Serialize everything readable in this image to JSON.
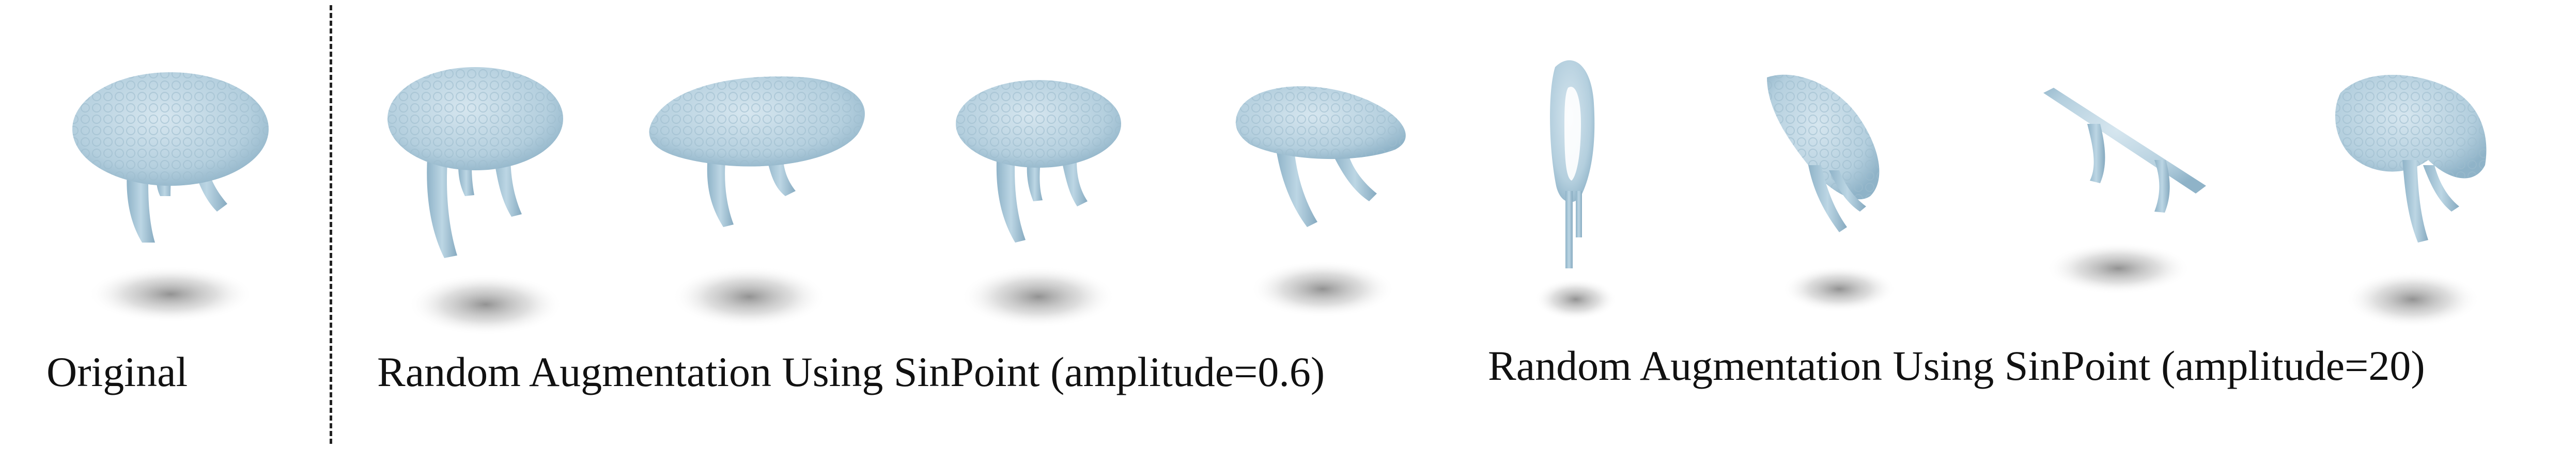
{
  "captions": {
    "original": "Original",
    "low_amplitude": "Random Augmentation Using SinPoint (amplitude=0.6)",
    "high_amplitude": "Random Augmentation Using SinPoint (amplitude=20)"
  },
  "colors": {
    "point_cloud": "#b7d2e0",
    "point_cloud_shade": "#8fb3c8",
    "shadow": "#9a9a9a",
    "divider": "#222222",
    "background": "#ffffff"
  },
  "panels": [
    {
      "group": "original",
      "shape": "table-top"
    },
    {
      "group": "amplitude-0.6",
      "shape": "table-top"
    },
    {
      "group": "amplitude-0.6",
      "shape": "wavy-table-top"
    },
    {
      "group": "amplitude-0.6",
      "shape": "table-top"
    },
    {
      "group": "amplitude-0.6",
      "shape": "tilted-table-top"
    },
    {
      "group": "amplitude-20",
      "shape": "vertical-ring"
    },
    {
      "group": "amplitude-20",
      "shape": "folded-sheet"
    },
    {
      "group": "amplitude-20",
      "shape": "thin-plank"
    },
    {
      "group": "amplitude-20",
      "shape": "bent-sheet"
    }
  ]
}
